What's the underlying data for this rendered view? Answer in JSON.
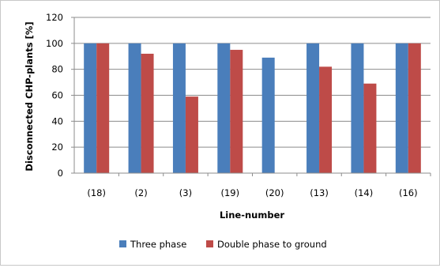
{
  "chart_data": {
    "type": "bar",
    "title": "",
    "xlabel": "Line-number",
    "ylabel": "Disconnected CHP-plants [%]",
    "ylim": [
      0,
      120
    ],
    "yticks": [
      0,
      20,
      40,
      60,
      80,
      100,
      120
    ],
    "grid": "horizontal",
    "legend_position": "bottom",
    "categories": [
      "(18)",
      "(2)",
      "(3)",
      "(19)",
      "(20)",
      "(13)",
      "(14)",
      "(16)"
    ],
    "series": [
      {
        "name": "Three phase",
        "color": "#4a7ebb",
        "values": [
          100,
          100,
          100,
          100,
          89,
          100,
          100,
          100
        ]
      },
      {
        "name": "Double phase to ground",
        "color": "#be4b48",
        "values": [
          100,
          92,
          59,
          95,
          0,
          82,
          69,
          100
        ]
      }
    ]
  }
}
